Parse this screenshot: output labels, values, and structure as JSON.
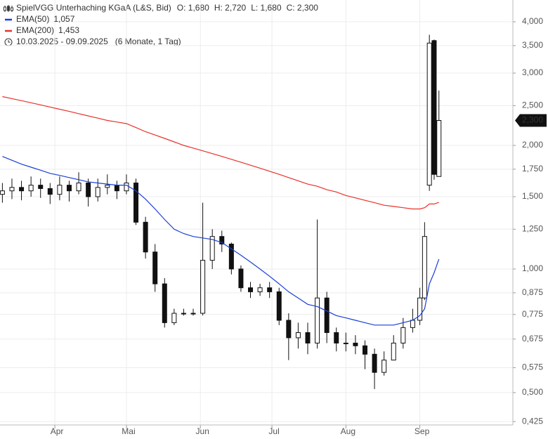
{
  "chart_data": {
    "type": "candlestick",
    "title": "SpielVGG Unterhaching KGaA (L&S, Bid)",
    "ohlc_labels": [
      "O: 1,680",
      "H: 2,720",
      "L: 1,680",
      "C: 2,300"
    ],
    "date_range": "10.03.2025 - 09.09.2025",
    "period": "(6 Monate, 1 Tag)",
    "last_label": "2,300",
    "log_scale": true,
    "grid": true,
    "xlim": [
      -1,
      214
    ],
    "xticks": [
      {
        "value": 22,
        "label": "Apr"
      },
      {
        "value": 52,
        "label": "Mai"
      },
      {
        "value": 83,
        "label": "Jun"
      },
      {
        "value": 113,
        "label": "Jul"
      },
      {
        "value": 144,
        "label": "Aug"
      },
      {
        "value": 175,
        "label": "Sep"
      }
    ],
    "ylim": [
      0.417,
      4.52
    ],
    "yticks": [
      {
        "value": 0.425,
        "label": "0,425"
      },
      {
        "value": 0.5,
        "label": "0,500"
      },
      {
        "value": 0.575,
        "label": "0,575"
      },
      {
        "value": 0.675,
        "label": "0,675"
      },
      {
        "value": 0.775,
        "label": "0,775"
      },
      {
        "value": 0.875,
        "label": "0,875"
      },
      {
        "value": 1.0,
        "label": "1,000"
      },
      {
        "value": 1.25,
        "label": "1,250"
      },
      {
        "value": 1.5,
        "label": "1,500"
      },
      {
        "value": 1.75,
        "label": "1,750"
      },
      {
        "value": 2.0,
        "label": "2,000"
      },
      {
        "value": 2.5,
        "label": "2,500"
      },
      {
        "value": 3.0,
        "label": "3,000"
      },
      {
        "value": 3.5,
        "label": "3,500"
      },
      {
        "value": 4.0,
        "label": "4,000"
      }
    ],
    "x": [
      0,
      4,
      8,
      12,
      16,
      20,
      24,
      28,
      32,
      36,
      40,
      44,
      48,
      52,
      56,
      60,
      64,
      68,
      72,
      76,
      80,
      84,
      88,
      92,
      96,
      100,
      104,
      108,
      112,
      116,
      120,
      124,
      128,
      132,
      136,
      140,
      144,
      148,
      152,
      156,
      160,
      164,
      168,
      172,
      175,
      177,
      179,
      181,
      183
    ],
    "open": [
      1.52,
      1.55,
      1.58,
      1.55,
      1.6,
      1.57,
      1.52,
      1.6,
      1.55,
      1.62,
      1.5,
      1.58,
      1.6,
      1.55,
      1.62,
      1.3,
      1.1,
      0.92,
      0.74,
      0.78,
      0.78,
      0.78,
      1.05,
      1.2,
      1.15,
      1.0,
      0.9,
      0.88,
      0.9,
      0.88,
      0.75,
      0.68,
      0.7,
      0.66,
      0.85,
      0.7,
      0.66,
      0.66,
      0.65,
      0.62,
      0.56,
      0.6,
      0.66,
      0.72,
      0.75,
      0.85,
      1.6,
      3.6,
      1.68
    ],
    "high": [
      1.62,
      1.66,
      1.64,
      1.68,
      1.66,
      1.62,
      1.68,
      1.64,
      1.72,
      1.66,
      1.66,
      1.7,
      1.64,
      1.7,
      1.66,
      1.34,
      1.15,
      0.95,
      0.8,
      0.8,
      0.8,
      1.45,
      1.25,
      1.24,
      1.16,
      1.02,
      0.93,
      0.92,
      0.93,
      0.9,
      0.78,
      0.74,
      0.74,
      1.32,
      0.88,
      0.72,
      0.7,
      0.69,
      0.67,
      0.64,
      0.63,
      0.69,
      0.76,
      0.8,
      0.9,
      1.3,
      3.72,
      3.62,
      2.72
    ],
    "low": [
      1.45,
      1.48,
      1.47,
      1.5,
      1.49,
      1.44,
      1.47,
      1.46,
      1.52,
      1.42,
      1.46,
      1.52,
      1.48,
      1.52,
      1.28,
      1.06,
      0.88,
      0.72,
      0.73,
      0.77,
      0.77,
      0.77,
      1.0,
      1.1,
      0.97,
      0.88,
      0.85,
      0.86,
      0.85,
      0.73,
      0.6,
      0.64,
      0.62,
      0.64,
      0.66,
      0.63,
      0.63,
      0.62,
      0.57,
      0.51,
      0.55,
      0.6,
      0.64,
      0.7,
      0.73,
      0.84,
      1.55,
      1.65,
      1.68
    ],
    "close": [
      1.55,
      1.58,
      1.55,
      1.6,
      1.57,
      1.52,
      1.6,
      1.55,
      1.62,
      1.5,
      1.58,
      1.6,
      1.55,
      1.62,
      1.3,
      1.1,
      0.92,
      0.74,
      0.78,
      0.78,
      0.78,
      1.05,
      1.2,
      1.15,
      1.0,
      0.9,
      0.88,
      0.9,
      0.88,
      0.75,
      0.68,
      0.7,
      0.66,
      0.85,
      0.7,
      0.66,
      0.66,
      0.65,
      0.62,
      0.56,
      0.6,
      0.66,
      0.72,
      0.75,
      0.85,
      1.2,
      3.55,
      1.7,
      2.3
    ],
    "series": [
      {
        "name": "EMA(50)",
        "color": "#1a3fd6",
        "value_label": "1,057",
        "values": [
          1.88,
          1.84,
          1.8,
          1.77,
          1.74,
          1.71,
          1.69,
          1.67,
          1.65,
          1.63,
          1.62,
          1.61,
          1.6,
          1.6,
          1.55,
          1.48,
          1.4,
          1.32,
          1.25,
          1.22,
          1.2,
          1.19,
          1.18,
          1.16,
          1.12,
          1.08,
          1.04,
          1.0,
          0.96,
          0.92,
          0.88,
          0.85,
          0.82,
          0.81,
          0.79,
          0.77,
          0.76,
          0.75,
          0.74,
          0.73,
          0.73,
          0.73,
          0.74,
          0.75,
          0.77,
          0.8,
          0.92,
          0.98,
          1.057
        ]
      },
      {
        "name": "EMA(200)",
        "color": "#e8322a",
        "value_label": "1,453",
        "values": [
          2.63,
          2.6,
          2.57,
          2.54,
          2.51,
          2.48,
          2.45,
          2.42,
          2.39,
          2.36,
          2.33,
          2.3,
          2.28,
          2.26,
          2.21,
          2.16,
          2.12,
          2.08,
          2.04,
          2.0,
          1.97,
          1.94,
          1.91,
          1.88,
          1.85,
          1.82,
          1.79,
          1.76,
          1.73,
          1.7,
          1.67,
          1.64,
          1.61,
          1.59,
          1.56,
          1.54,
          1.51,
          1.49,
          1.47,
          1.45,
          1.43,
          1.42,
          1.41,
          1.4,
          1.4,
          1.41,
          1.44,
          1.44,
          1.453
        ]
      }
    ]
  }
}
